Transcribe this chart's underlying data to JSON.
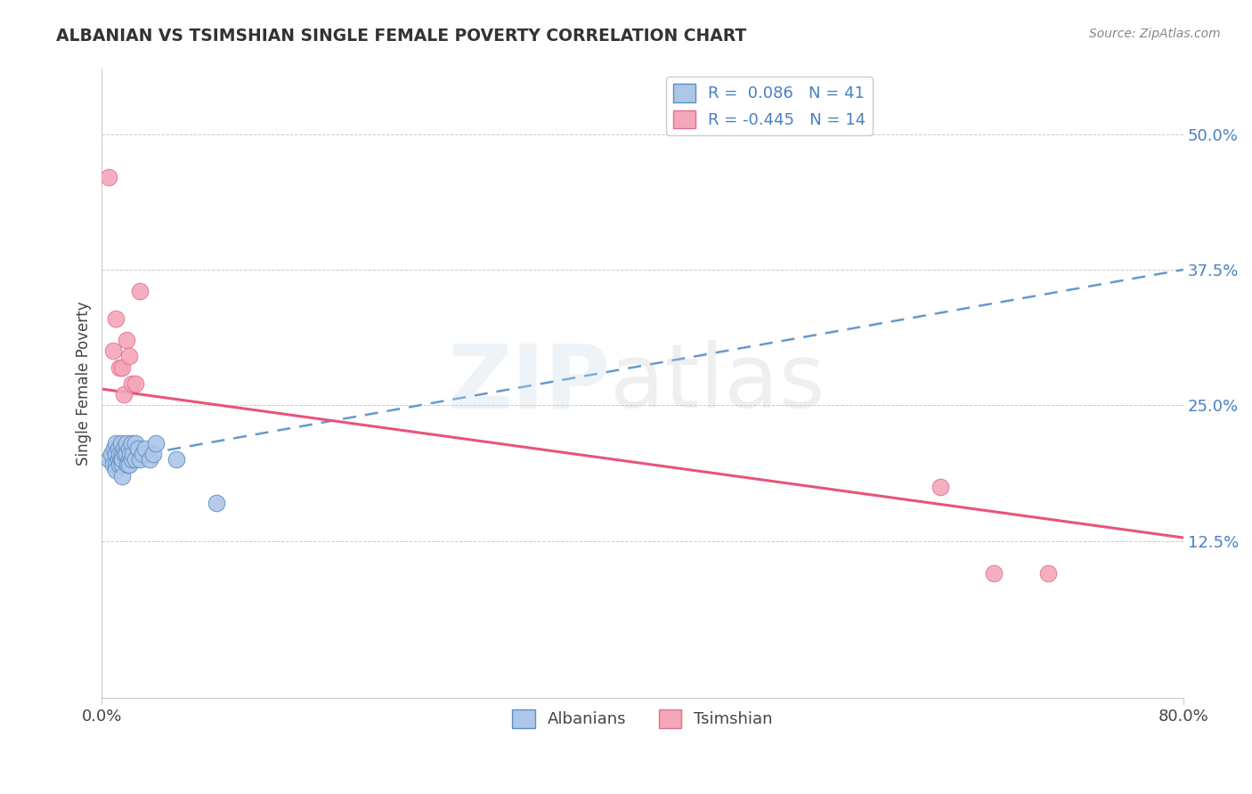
{
  "title": "ALBANIAN VS TSIMSHIAN SINGLE FEMALE POVERTY CORRELATION CHART",
  "source": "Source: ZipAtlas.com",
  "ylabel": "Single Female Poverty",
  "xlim": [
    0.0,
    0.8
  ],
  "ylim": [
    -0.02,
    0.56
  ],
  "ytick_positions": [
    0.0,
    0.125,
    0.25,
    0.375,
    0.5
  ],
  "ytick_labels": [
    "",
    "12.5%",
    "25.0%",
    "37.5%",
    "50.0%"
  ],
  "albanians_R": 0.086,
  "albanians_N": 41,
  "tsimshian_R": -0.445,
  "tsimshian_N": 14,
  "albanian_fill_color": "#aec6e8",
  "tsimshian_fill_color": "#f4a7b9",
  "albanian_edge_color": "#5b8ec4",
  "tsimshian_edge_color": "#e07090",
  "albanian_line_color": "#6699cc",
  "tsimshian_line_color": "#e8547a",
  "background_color": "#ffffff",
  "grid_color": "#cccccc",
  "albanians_x": [
    0.005,
    0.007,
    0.008,
    0.009,
    0.01,
    0.01,
    0.01,
    0.01,
    0.012,
    0.012,
    0.013,
    0.013,
    0.014,
    0.014,
    0.015,
    0.015,
    0.015,
    0.015,
    0.016,
    0.017,
    0.018,
    0.018,
    0.019,
    0.02,
    0.02,
    0.02,
    0.021,
    0.022,
    0.022,
    0.023,
    0.025,
    0.025,
    0.027,
    0.028,
    0.03,
    0.032,
    0.035,
    0.038,
    0.04,
    0.055,
    0.085
  ],
  "albanians_y": [
    0.2,
    0.205,
    0.195,
    0.21,
    0.215,
    0.205,
    0.195,
    0.19,
    0.21,
    0.2,
    0.205,
    0.195,
    0.215,
    0.2,
    0.205,
    0.195,
    0.185,
    0.2,
    0.21,
    0.205,
    0.215,
    0.205,
    0.195,
    0.21,
    0.2,
    0.195,
    0.205,
    0.215,
    0.2,
    0.205,
    0.2,
    0.215,
    0.21,
    0.2,
    0.205,
    0.21,
    0.2,
    0.205,
    0.215,
    0.2,
    0.16
  ],
  "tsimshian_x": [
    0.005,
    0.008,
    0.01,
    0.013,
    0.015,
    0.016,
    0.018,
    0.02,
    0.022,
    0.025,
    0.028,
    0.62,
    0.66,
    0.7
  ],
  "tsimshian_y": [
    0.46,
    0.3,
    0.33,
    0.285,
    0.285,
    0.26,
    0.31,
    0.295,
    0.27,
    0.27,
    0.355,
    0.175,
    0.095,
    0.095
  ],
  "alb_line_x0": 0.0,
  "alb_line_x1": 0.8,
  "alb_line_y0": 0.198,
  "alb_line_y1": 0.375,
  "tsi_line_x0": 0.0,
  "tsi_line_x1": 0.8,
  "tsi_line_y0": 0.265,
  "tsi_line_y1": 0.128
}
